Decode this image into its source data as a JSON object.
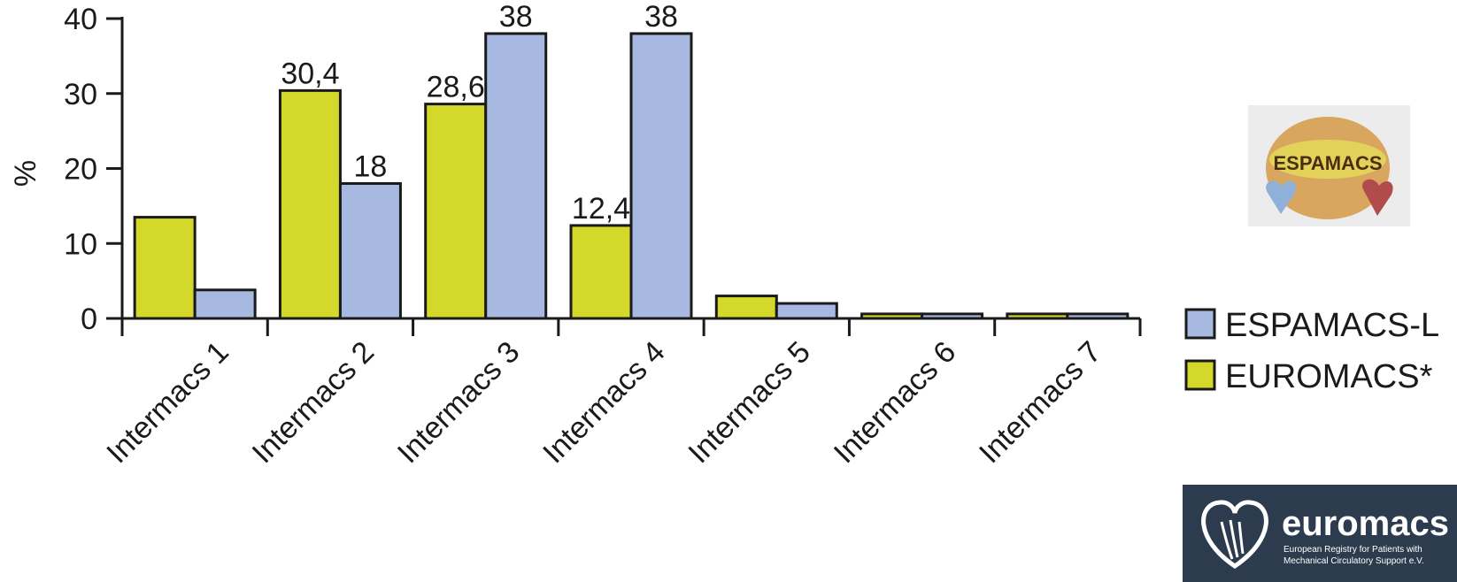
{
  "chart_data": {
    "type": "bar",
    "categories": [
      "Intermacs 1",
      "Intermacs 2",
      "Intermacs 3",
      "Intermacs 4",
      "Intermacs 5",
      "Intermacs 6",
      "Intermacs 7"
    ],
    "series": [
      {
        "name": "EUROMACS*",
        "color": "#d4d82a",
        "values": [
          13.5,
          30.4,
          28.6,
          12.4,
          3,
          0.6,
          0.6
        ],
        "labels": [
          "",
          "30,4",
          "28,6",
          "12,4",
          "",
          "",
          ""
        ]
      },
      {
        "name": "ESPAMACS-L",
        "color": "#a7b9e1",
        "values": [
          3.8,
          18,
          38,
          38,
          2,
          0.6,
          0.6
        ],
        "labels": [
          "",
          "18",
          "38",
          "38",
          "",
          "",
          ""
        ]
      }
    ],
    "ylabel": "%",
    "xlabel": "",
    "ylim": [
      0,
      40
    ],
    "yticks": [
      0,
      10,
      20,
      30,
      40
    ],
    "grid": false,
    "legend_position": "bottom-right"
  },
  "logos": {
    "espamacs": {
      "text": "ESPAMACS"
    },
    "euromacs": {
      "name": "euromacs",
      "tagline_line1": "European Registry for Patients with",
      "tagline_line2": "Mechanical Circulatory Support e.V."
    }
  }
}
